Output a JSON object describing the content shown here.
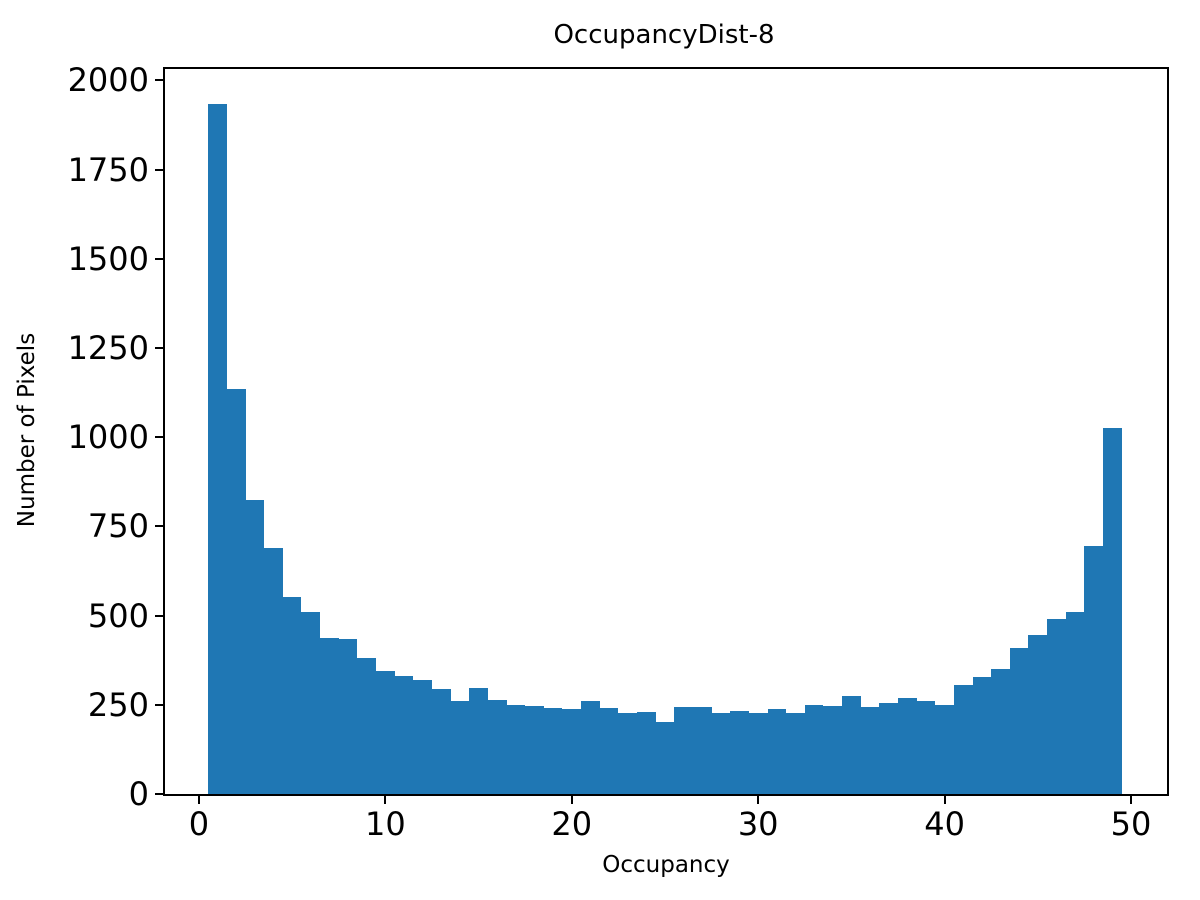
{
  "figure": {
    "background_color": "#ffffff",
    "spine_color": "#000000",
    "text_color": "#000000"
  },
  "chart_data": {
    "type": "bar",
    "subtype": "histogram",
    "title": "OccupancyDist-8",
    "xlabel": "Occupancy",
    "ylabel": "Number of Pixels",
    "bar_color": "#1f77b4",
    "bin_start": 0.5,
    "bin_width": 1,
    "values": [
      1935,
      1135,
      825,
      690,
      552,
      510,
      438,
      435,
      380,
      345,
      330,
      320,
      295,
      262,
      298,
      263,
      250,
      248,
      240,
      238,
      260,
      242,
      226,
      230,
      202,
      245,
      243,
      228,
      232,
      226,
      237,
      226,
      250,
      246,
      275,
      244,
      254,
      268,
      260,
      249,
      305,
      329,
      350,
      408,
      445,
      490,
      510,
      695,
      1025
    ],
    "xlim": [
      -1.82,
      51.93
    ],
    "ylim": [
      0,
      2032
    ],
    "xticks": [
      0,
      10,
      20,
      30,
      40,
      50
    ],
    "yticks": [
      0,
      250,
      500,
      750,
      1000,
      1250,
      1500,
      1750,
      2000
    ],
    "grid": false,
    "legend": null
  }
}
